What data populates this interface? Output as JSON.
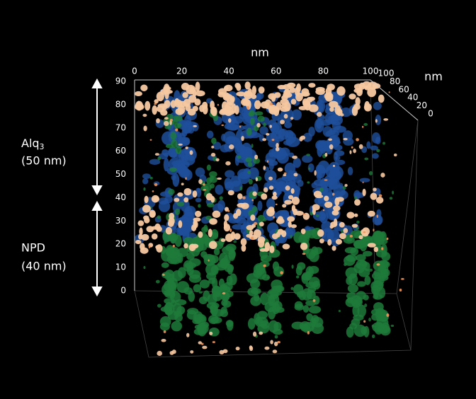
{
  "axes": {
    "x": {
      "label": "nm",
      "ticks": [
        "0",
        "20",
        "40",
        "60",
        "80",
        "100"
      ]
    },
    "z": {
      "ticks": [
        "0",
        "10",
        "20",
        "30",
        "40",
        "50",
        "60",
        "70",
        "80",
        "90"
      ]
    },
    "depth": {
      "label": "nm",
      "ticks": [
        "100",
        "80",
        "60",
        "40",
        "20",
        "0"
      ]
    }
  },
  "layers": [
    {
      "name": "Alq",
      "subscript": "3",
      "thickness": "(50 nm)"
    },
    {
      "name": "NPD",
      "thickness": "(40 nm)"
    }
  ]
}
